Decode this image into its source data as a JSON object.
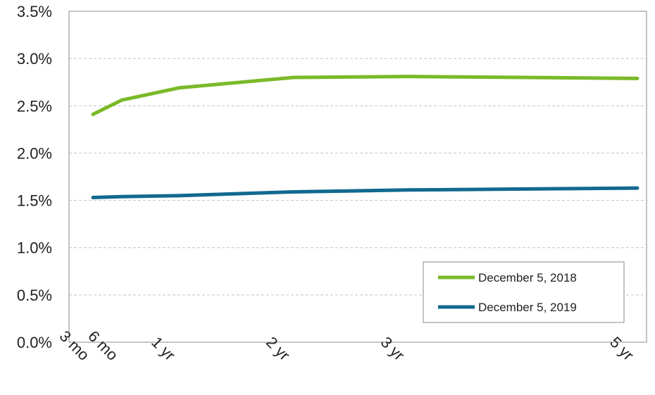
{
  "chart_data": {
    "type": "line",
    "x": [
      "3 mo",
      "6 mo",
      "1 yr",
      "2 yr",
      "3 yr",
      "5 yr"
    ],
    "x_values_months": [
      3,
      6,
      12,
      24,
      36,
      60
    ],
    "series": [
      {
        "name": "December 5, 2018",
        "values": [
          2.41,
          2.56,
          2.69,
          2.8,
          2.81,
          2.79
        ],
        "color": "#7ab929"
      },
      {
        "name": "December 5, 2019",
        "values": [
          1.53,
          1.54,
          1.55,
          1.59,
          1.61,
          1.63
        ],
        "color": "#11698f"
      }
    ],
    "y_ticks": [
      "0.0%",
      "0.5%",
      "1.0%",
      "1.5%",
      "2.0%",
      "2.5%",
      "3.0%",
      "3.5%"
    ],
    "ylim": [
      0,
      3.5
    ],
    "grid": true,
    "legend": "bottom-right"
  }
}
